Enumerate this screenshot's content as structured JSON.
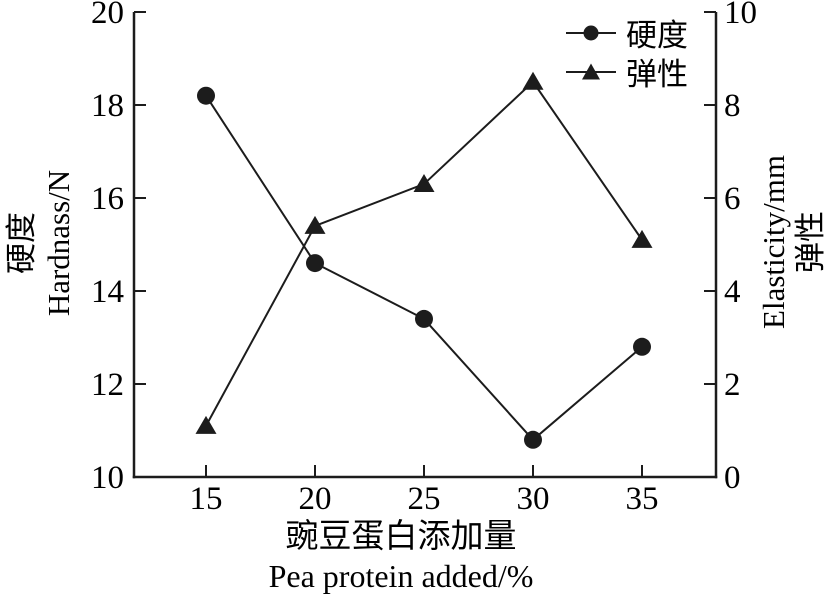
{
  "chart_data": {
    "type": "line",
    "x": [
      15,
      20,
      25,
      30,
      35
    ],
    "x_axis": {
      "title_zh": "豌豆蛋白添加量",
      "title_en": "Pea protein added/%",
      "ticks": [
        15,
        20,
        25,
        30,
        35
      ]
    },
    "left_axis": {
      "title_zh": "硬度",
      "title_en": "Hardnass/N",
      "ticks": [
        10,
        12,
        14,
        16,
        18,
        20
      ],
      "range": [
        10,
        20
      ]
    },
    "right_axis": {
      "title_en": "Elasticity/mm",
      "title_zh": "弹性",
      "ticks": [
        0,
        2,
        4,
        6,
        8,
        10
      ],
      "range": [
        0,
        10
      ]
    },
    "series": [
      {
        "key": "hardness",
        "name": "硬度",
        "axis": "left",
        "marker": "circle",
        "values": [
          18.2,
          14.6,
          13.4,
          10.8,
          12.8
        ]
      },
      {
        "key": "elasticity",
        "name": "弹性",
        "axis": "right",
        "marker": "triangle",
        "values": [
          1.1,
          5.4,
          6.3,
          8.5,
          5.1
        ]
      }
    ],
    "legend": [
      {
        "key": "hardness",
        "label": "硬度",
        "marker": "circle"
      },
      {
        "key": "elasticity",
        "label": "弹性",
        "marker": "triangle"
      }
    ],
    "legend_position": "top-right-inside",
    "grid": false,
    "colors": {
      "line": "#1c1c1c",
      "text": "#000000",
      "background": "#ffffff"
    }
  }
}
